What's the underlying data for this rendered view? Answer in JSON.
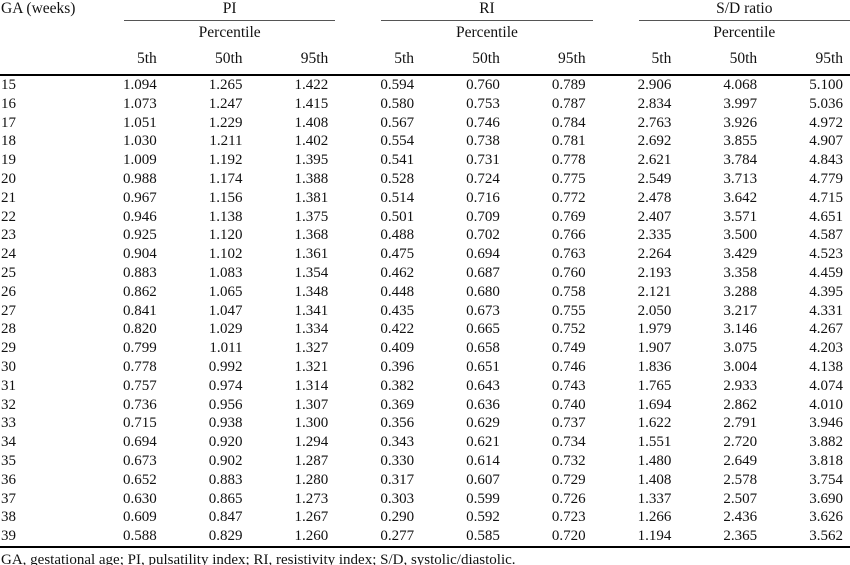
{
  "table": {
    "ga_header": "GA (weeks)",
    "groups": [
      {
        "title": "PI",
        "subtitle": "Percentile",
        "cols": [
          "5th",
          "50th",
          "95th"
        ]
      },
      {
        "title": "RI",
        "subtitle": "Percentile",
        "cols": [
          "5th",
          "50th",
          "95th"
        ]
      },
      {
        "title": "S/D ratio",
        "subtitle": "Percentile",
        "cols": [
          "5th",
          "50th",
          "95th"
        ]
      }
    ],
    "rows": [
      {
        "ga": "15",
        "pi": [
          "1.094",
          "1.265",
          "1.422"
        ],
        "ri": [
          "0.594",
          "0.760",
          "0.789"
        ],
        "sd": [
          "2.906",
          "4.068",
          "5.100"
        ]
      },
      {
        "ga": "16",
        "pi": [
          "1.073",
          "1.247",
          "1.415"
        ],
        "ri": [
          "0.580",
          "0.753",
          "0.787"
        ],
        "sd": [
          "2.834",
          "3.997",
          "5.036"
        ]
      },
      {
        "ga": "17",
        "pi": [
          "1.051",
          "1.229",
          "1.408"
        ],
        "ri": [
          "0.567",
          "0.746",
          "0.784"
        ],
        "sd": [
          "2.763",
          "3.926",
          "4.972"
        ]
      },
      {
        "ga": "18",
        "pi": [
          "1.030",
          "1.211",
          "1.402"
        ],
        "ri": [
          "0.554",
          "0.738",
          "0.781"
        ],
        "sd": [
          "2.692",
          "3.855",
          "4.907"
        ]
      },
      {
        "ga": "19",
        "pi": [
          "1.009",
          "1.192",
          "1.395"
        ],
        "ri": [
          "0.541",
          "0.731",
          "0.778"
        ],
        "sd": [
          "2.621",
          "3.784",
          "4.843"
        ]
      },
      {
        "ga": "20",
        "pi": [
          "0.988",
          "1.174",
          "1.388"
        ],
        "ri": [
          "0.528",
          "0.724",
          "0.775"
        ],
        "sd": [
          "2.549",
          "3.713",
          "4.779"
        ]
      },
      {
        "ga": "21",
        "pi": [
          "0.967",
          "1.156",
          "1.381"
        ],
        "ri": [
          "0.514",
          "0.716",
          "0.772"
        ],
        "sd": [
          "2.478",
          "3.642",
          "4.715"
        ]
      },
      {
        "ga": "22",
        "pi": [
          "0.946",
          "1.138",
          "1.375"
        ],
        "ri": [
          "0.501",
          "0.709",
          "0.769"
        ],
        "sd": [
          "2.407",
          "3.571",
          "4.651"
        ]
      },
      {
        "ga": "23",
        "pi": [
          "0.925",
          "1.120",
          "1.368"
        ],
        "ri": [
          "0.488",
          "0.702",
          "0.766"
        ],
        "sd": [
          "2.335",
          "3.500",
          "4.587"
        ]
      },
      {
        "ga": "24",
        "pi": [
          "0.904",
          "1.102",
          "1.361"
        ],
        "ri": [
          "0.475",
          "0.694",
          "0.763"
        ],
        "sd": [
          "2.264",
          "3.429",
          "4.523"
        ]
      },
      {
        "ga": "25",
        "pi": [
          "0.883",
          "1.083",
          "1.354"
        ],
        "ri": [
          "0.462",
          "0.687",
          "0.760"
        ],
        "sd": [
          "2.193",
          "3.358",
          "4.459"
        ]
      },
      {
        "ga": "26",
        "pi": [
          "0.862",
          "1.065",
          "1.348"
        ],
        "ri": [
          "0.448",
          "0.680",
          "0.758"
        ],
        "sd": [
          "2.121",
          "3.288",
          "4.395"
        ]
      },
      {
        "ga": "27",
        "pi": [
          "0.841",
          "1.047",
          "1.341"
        ],
        "ri": [
          "0.435",
          "0.673",
          "0.755"
        ],
        "sd": [
          "2.050",
          "3.217",
          "4.331"
        ]
      },
      {
        "ga": "28",
        "pi": [
          "0.820",
          "1.029",
          "1.334"
        ],
        "ri": [
          "0.422",
          "0.665",
          "0.752"
        ],
        "sd": [
          "1.979",
          "3.146",
          "4.267"
        ]
      },
      {
        "ga": "29",
        "pi": [
          "0.799",
          "1.011",
          "1.327"
        ],
        "ri": [
          "0.409",
          "0.658",
          "0.749"
        ],
        "sd": [
          "1.907",
          "3.075",
          "4.203"
        ]
      },
      {
        "ga": "30",
        "pi": [
          "0.778",
          "0.992",
          "1.321"
        ],
        "ri": [
          "0.396",
          "0.651",
          "0.746"
        ],
        "sd": [
          "1.836",
          "3.004",
          "4.138"
        ]
      },
      {
        "ga": "31",
        "pi": [
          "0.757",
          "0.974",
          "1.314"
        ],
        "ri": [
          "0.382",
          "0.643",
          "0.743"
        ],
        "sd": [
          "1.765",
          "2.933",
          "4.074"
        ]
      },
      {
        "ga": "32",
        "pi": [
          "0.736",
          "0.956",
          "1.307"
        ],
        "ri": [
          "0.369",
          "0.636",
          "0.740"
        ],
        "sd": [
          "1.694",
          "2.862",
          "4.010"
        ]
      },
      {
        "ga": "33",
        "pi": [
          "0.715",
          "0.938",
          "1.300"
        ],
        "ri": [
          "0.356",
          "0.629",
          "0.737"
        ],
        "sd": [
          "1.622",
          "2.791",
          "3.946"
        ]
      },
      {
        "ga": "34",
        "pi": [
          "0.694",
          "0.920",
          "1.294"
        ],
        "ri": [
          "0.343",
          "0.621",
          "0.734"
        ],
        "sd": [
          "1.551",
          "2.720",
          "3.882"
        ]
      },
      {
        "ga": "35",
        "pi": [
          "0.673",
          "0.902",
          "1.287"
        ],
        "ri": [
          "0.330",
          "0.614",
          "0.732"
        ],
        "sd": [
          "1.480",
          "2.649",
          "3.818"
        ]
      },
      {
        "ga": "36",
        "pi": [
          "0.652",
          "0.883",
          "1.280"
        ],
        "ri": [
          "0.317",
          "0.607",
          "0.729"
        ],
        "sd": [
          "1.408",
          "2.578",
          "3.754"
        ]
      },
      {
        "ga": "37",
        "pi": [
          "0.630",
          "0.865",
          "1.273"
        ],
        "ri": [
          "0.303",
          "0.599",
          "0.726"
        ],
        "sd": [
          "1.337",
          "2.507",
          "3.690"
        ]
      },
      {
        "ga": "38",
        "pi": [
          "0.609",
          "0.847",
          "1.267"
        ],
        "ri": [
          "0.290",
          "0.592",
          "0.723"
        ],
        "sd": [
          "1.266",
          "2.436",
          "3.626"
        ]
      },
      {
        "ga": "39",
        "pi": [
          "0.588",
          "0.829",
          "1.260"
        ],
        "ri": [
          "0.277",
          "0.585",
          "0.720"
        ],
        "sd": [
          "1.194",
          "2.365",
          "3.562"
        ]
      }
    ]
  },
  "footnote": "GA, gestational age; PI, pulsatility index; RI, resistivity index; S/D, systolic/diastolic.",
  "colors": {
    "text": "#111111",
    "rule_thin": "#555555",
    "rule_thick": "#000000",
    "background": "#ffffff"
  }
}
